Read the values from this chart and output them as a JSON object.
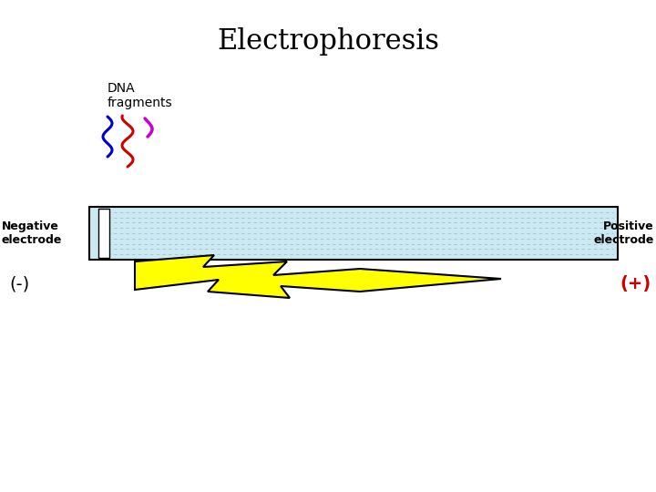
{
  "title": "Electrophoresis",
  "title_fontsize": 22,
  "background_color": "#ffffff",
  "dna_label": "DNA\nfragments",
  "dna_label_fontsize": 10,
  "negative_label": "Negative\nelectrode",
  "positive_label": "Positive\nelectrode",
  "electrode_fontsize": 9,
  "neg_sign": "(-)",
  "pos_sign": "(+)",
  "sign_fontsize": 14,
  "neg_sign_color": "#000000",
  "pos_sign_color": "#cc0000",
  "gel_color": "#cce8f0",
  "gel_edge_color": "#000000",
  "well_color": "#ffffff",
  "lightning_color": "#ffff00",
  "lightning_edge": "#000000",
  "dna_frag1_color": "#0000cc",
  "dna_frag2_color": "#cc0000",
  "dna_frag3_color": "#cc00cc"
}
